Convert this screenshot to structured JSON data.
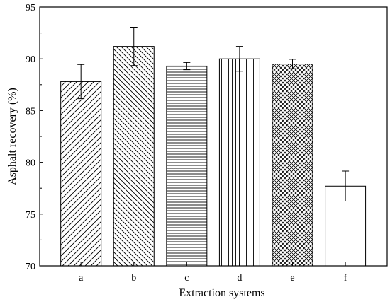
{
  "chart_data": {
    "type": "bar",
    "xlabel": "Extraction systems",
    "ylabel": "Asphalt recovery (%)",
    "ylim": [
      70,
      95
    ],
    "yticks": [
      70,
      75,
      80,
      85,
      90,
      95
    ],
    "grid": false,
    "legend": "none",
    "categories": [
      "a",
      "b",
      "c",
      "d",
      "e",
      "f"
    ],
    "values": [
      87.8,
      91.2,
      89.3,
      90.0,
      89.5,
      77.7
    ],
    "errors": [
      1.65,
      1.85,
      0.35,
      1.2,
      0.45,
      1.45
    ],
    "patterns": [
      "diagonal-up",
      "diagonal-down",
      "horizontal",
      "vertical",
      "crosshatch",
      "none"
    ]
  }
}
